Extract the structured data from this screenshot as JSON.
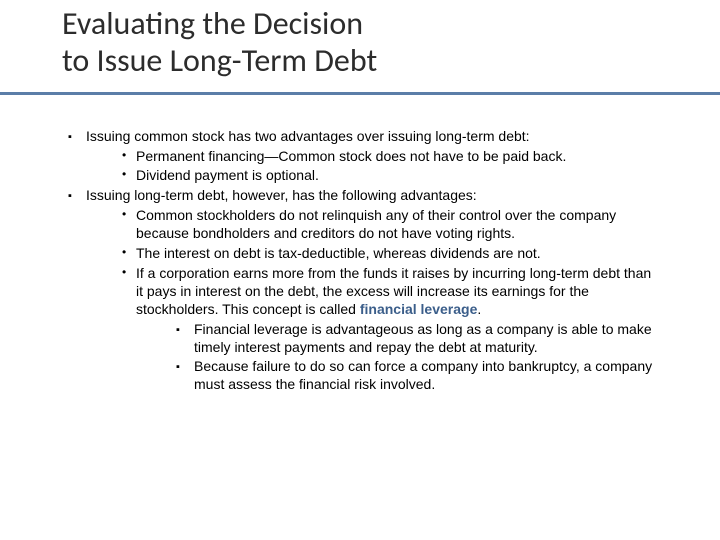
{
  "title": {
    "line1": "Evaluating the Decision",
    "line2": "to Issue Long-Term Debt"
  },
  "colors": {
    "accent": "#5b7ea8",
    "keyterm": "#3b5e8a",
    "title_text": "#2c2c2c",
    "body_text": "#000000",
    "background": "#ffffff"
  },
  "bullets": {
    "square": "▪",
    "dot": "•"
  },
  "content": {
    "p1": "Issuing common stock has two advantages over issuing long-term debt:",
    "p1a": "Permanent financing—Common stock does not have to be paid back.",
    "p1b": "Dividend payment is optional.",
    "p2": "Issuing long-term debt, however, has the following advantages:",
    "p2a": "Common stockholders do not relinquish any of their control over the company because bondholders and creditors do not have voting rights.",
    "p2b": "The interest on debt is tax-deductible, whereas dividends are not.",
    "p2c_pre": "If a corporation earns more from the funds it raises by incurring long-term debt than it pays in interest on the debt, the excess will increase its earnings for the stockholders. This concept is called ",
    "p2c_term": "financial leverage",
    "p2c_post": ".",
    "p2c_i": "Financial leverage is advantageous as long as a company is able to make timely interest payments and repay the debt at maturity.",
    "p2c_ii": "Because failure to do so can force a company into bankruptcy, a company must assess the financial risk involved."
  }
}
